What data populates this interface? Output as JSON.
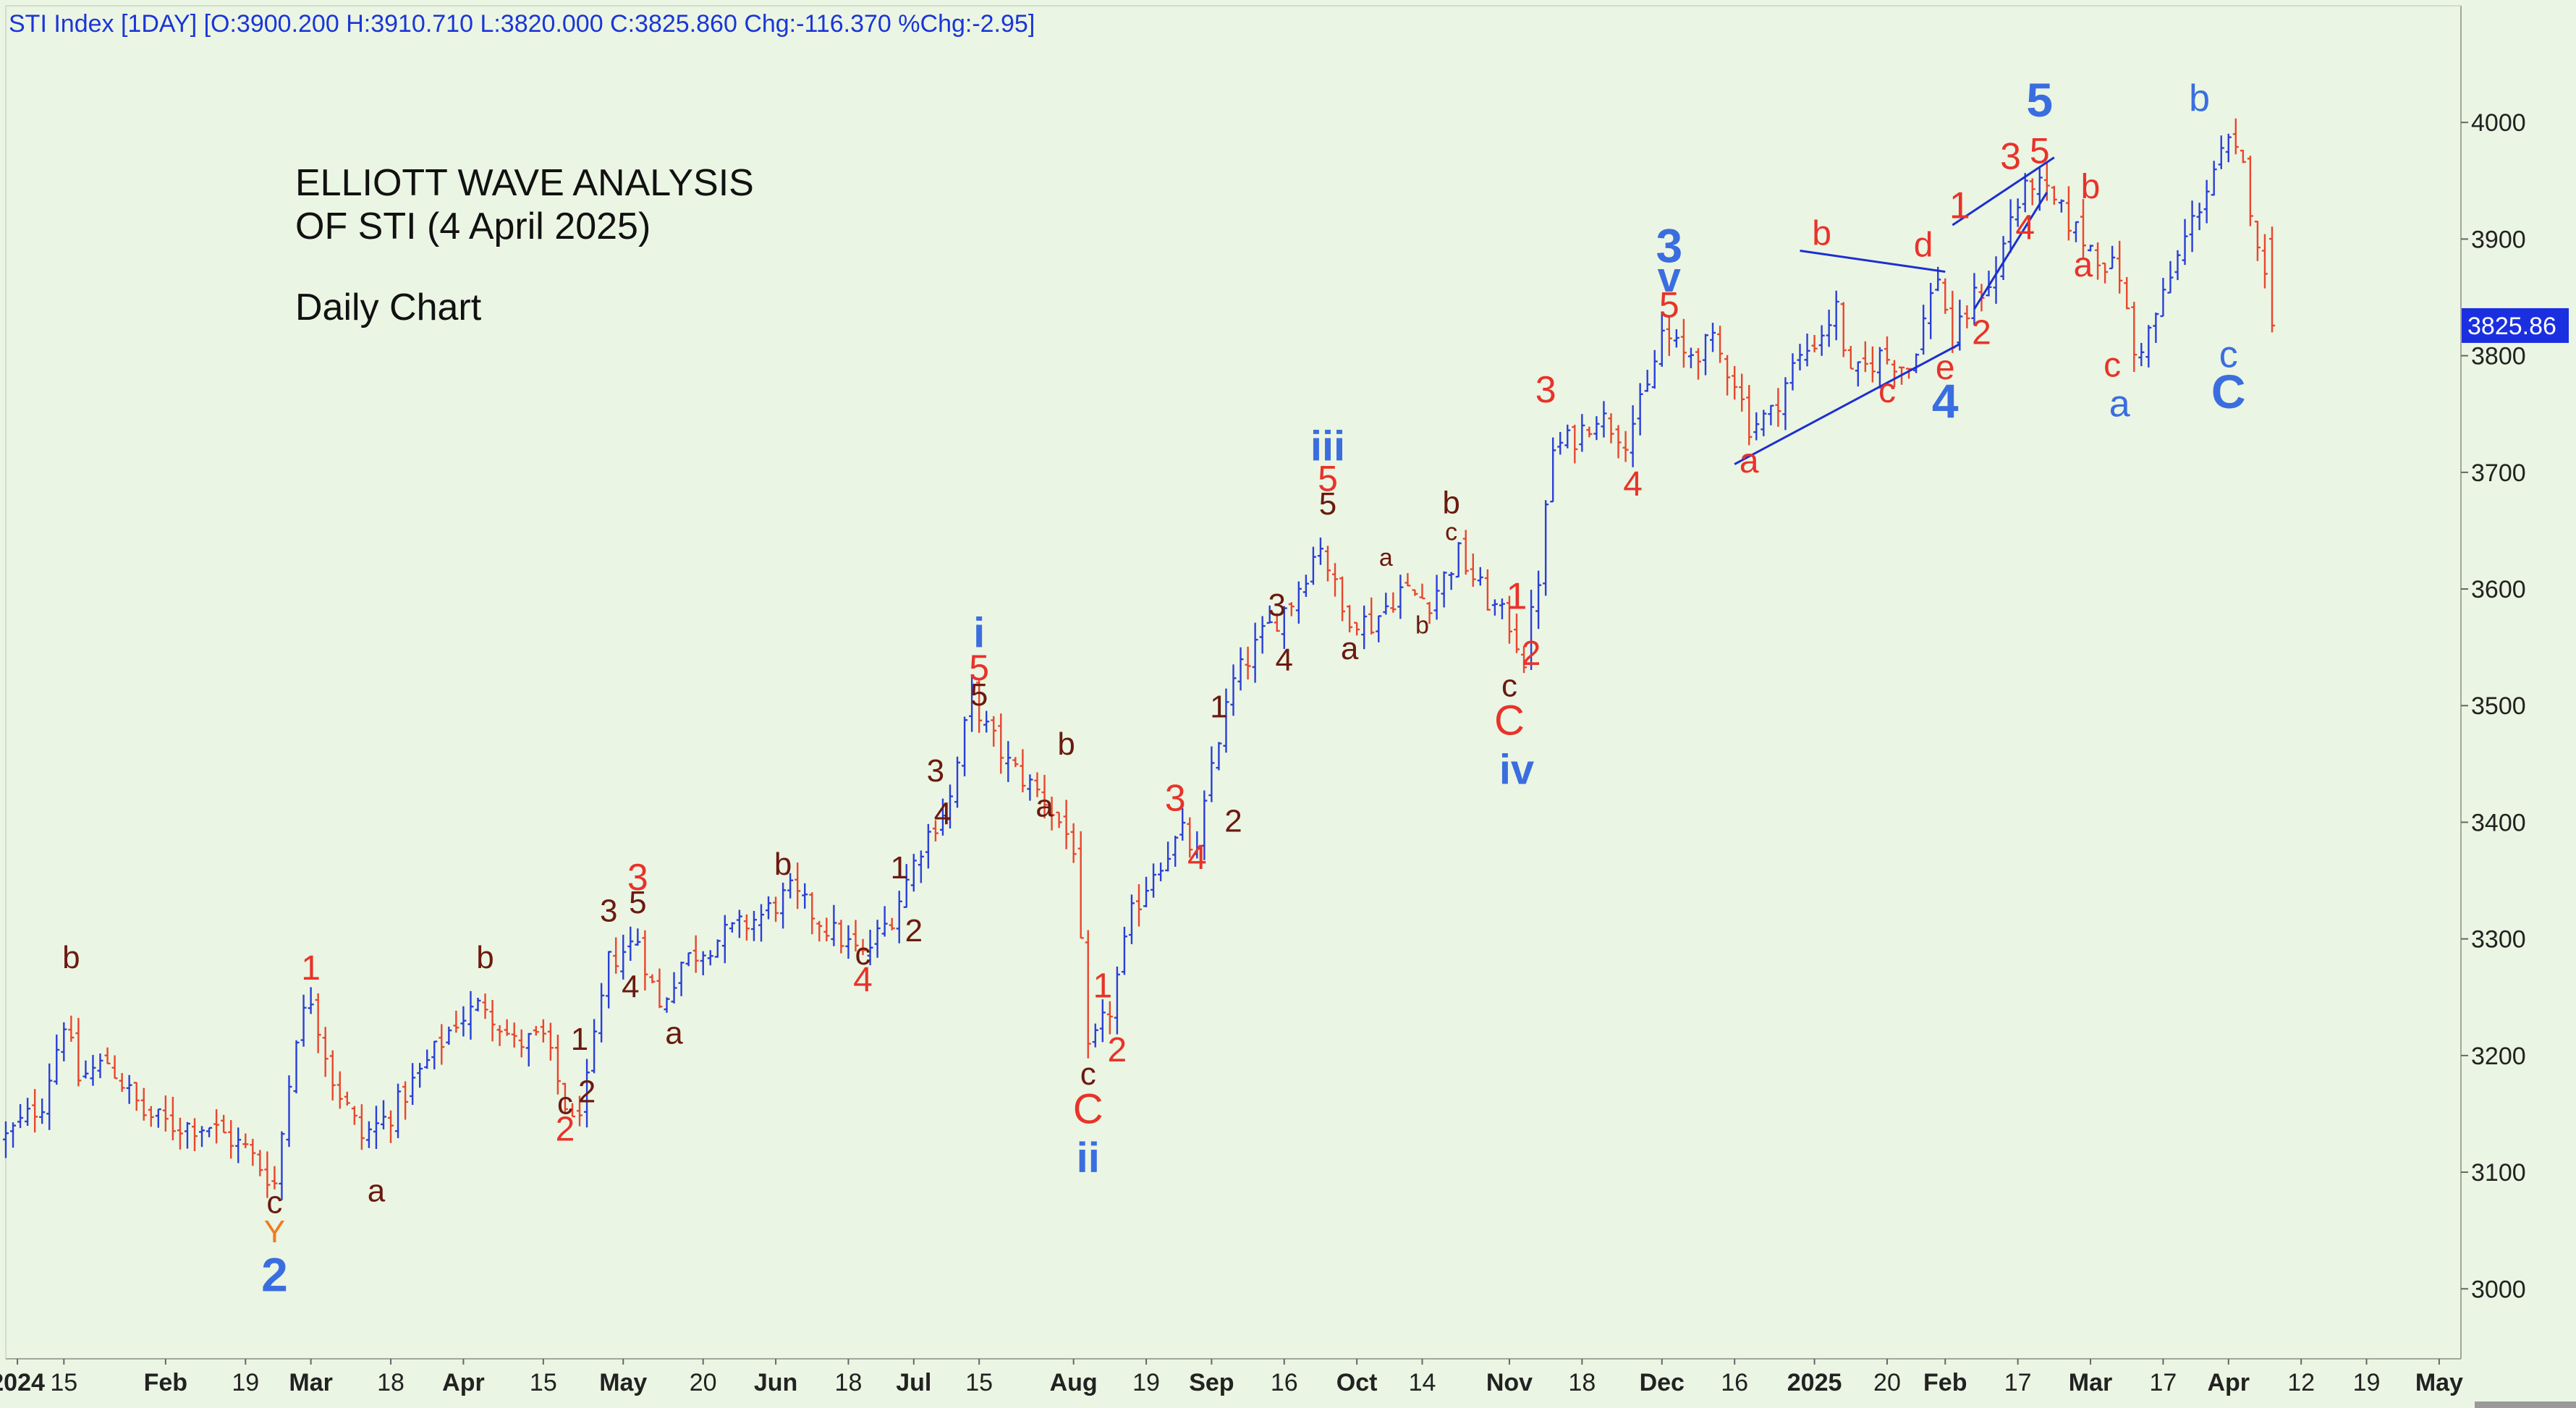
{
  "header": {
    "text": "STI Index [1DAY] [O:3900.200 H:3910.710 L:3820.000 C:3825.860 Chg:-116.370 %Chg:-2.95]"
  },
  "annotation": {
    "line1": "ELLIOTT WAVE ANALYSIS",
    "line2": "OF STI (4 April 2025)",
    "line3": "Daily Chart"
  },
  "last_price_label": "3825.86",
  "colors": {
    "background": "#ebf5e3",
    "up_bar": "#2a3fd8",
    "down_bar": "#e8462e",
    "label_blue": "#3a6ee0",
    "label_red": "#e8332a",
    "label_dark": "#6b1a10",
    "label_orange": "#f07a22",
    "price_tag": "#1a2fe0",
    "trendline": "#1c2fd0"
  },
  "chart_data": {
    "type": "ohlc",
    "ylim": [
      2940,
      4100
    ],
    "yticks": [
      3000,
      3100,
      3200,
      3300,
      3400,
      3500,
      3600,
      3700,
      3800,
      3900,
      4000
    ],
    "grid": false,
    "x_tick_labels": [
      {
        "label": "2024",
        "pos": 1.6,
        "bold": true
      },
      {
        "label": "15",
        "pos": 8,
        "bold": false
      },
      {
        "label": "Feb",
        "pos": 22,
        "bold": true
      },
      {
        "label": "19",
        "pos": 33,
        "bold": false
      },
      {
        "label": "Mar",
        "pos": 42,
        "bold": true
      },
      {
        "label": "18",
        "pos": 53,
        "bold": false
      },
      {
        "label": "Apr",
        "pos": 63,
        "bold": true
      },
      {
        "label": "15",
        "pos": 74,
        "bold": false
      },
      {
        "label": "May",
        "pos": 85,
        "bold": true
      },
      {
        "label": "20",
        "pos": 96,
        "bold": false
      },
      {
        "label": "Jun",
        "pos": 106,
        "bold": true
      },
      {
        "label": "18",
        "pos": 116,
        "bold": false
      },
      {
        "label": "Jul",
        "pos": 125,
        "bold": true
      },
      {
        "label": "15",
        "pos": 134,
        "bold": false
      },
      {
        "label": "Aug",
        "pos": 147,
        "bold": true
      },
      {
        "label": "19",
        "pos": 157,
        "bold": false
      },
      {
        "label": "Sep",
        "pos": 166,
        "bold": true
      },
      {
        "label": "16",
        "pos": 176,
        "bold": false
      },
      {
        "label": "Oct",
        "pos": 186,
        "bold": true
      },
      {
        "label": "14",
        "pos": 195,
        "bold": false
      },
      {
        "label": "Nov",
        "pos": 207,
        "bold": true
      },
      {
        "label": "18",
        "pos": 217,
        "bold": false
      },
      {
        "label": "Dec",
        "pos": 228,
        "bold": true
      },
      {
        "label": "16",
        "pos": 238,
        "bold": false
      },
      {
        "label": "2025",
        "pos": 249,
        "bold": true
      },
      {
        "label": "20",
        "pos": 259,
        "bold": false
      },
      {
        "label": "Feb",
        "pos": 267,
        "bold": true
      },
      {
        "label": "17",
        "pos": 277,
        "bold": false
      },
      {
        "label": "Mar",
        "pos": 287,
        "bold": true
      },
      {
        "label": "17",
        "pos": 297,
        "bold": false
      },
      {
        "label": "Apr",
        "pos": 306,
        "bold": true
      },
      {
        "label": "12",
        "pos": 316,
        "bold": false
      },
      {
        "label": "19",
        "pos": 325,
        "bold": false
      },
      {
        "label": "May",
        "pos": 335,
        "bold": true
      }
    ],
    "close_anchors": [
      [
        0,
        3130
      ],
      [
        5,
        3160
      ],
      [
        8,
        3230
      ],
      [
        10,
        3180
      ],
      [
        14,
        3195
      ],
      [
        19,
        3150
      ],
      [
        23,
        3140
      ],
      [
        28,
        3140
      ],
      [
        33,
        3120
      ],
      [
        37,
        3090
      ],
      [
        40,
        3220
      ],
      [
        42,
        3250
      ],
      [
        45,
        3180
      ],
      [
        49,
        3130
      ],
      [
        53,
        3150
      ],
      [
        57,
        3185
      ],
      [
        62,
        3230
      ],
      [
        66,
        3245
      ],
      [
        70,
        3210
      ],
      [
        74,
        3215
      ],
      [
        78,
        3140
      ],
      [
        80,
        3175
      ],
      [
        83,
        3280
      ],
      [
        87,
        3300
      ],
      [
        90,
        3240
      ],
      [
        93,
        3280
      ],
      [
        98,
        3300
      ],
      [
        104,
        3320
      ],
      [
        108,
        3340
      ],
      [
        113,
        3310
      ],
      [
        118,
        3285
      ],
      [
        122,
        3320
      ],
      [
        126,
        3380
      ],
      [
        130,
        3420
      ],
      [
        133,
        3510
      ],
      [
        135,
        3480
      ],
      [
        138,
        3450
      ],
      [
        143,
        3420
      ],
      [
        147,
        3380
      ],
      [
        149,
        3200
      ],
      [
        152,
        3240
      ],
      [
        155,
        3320
      ],
      [
        158,
        3360
      ],
      [
        162,
        3390
      ],
      [
        164,
        3370
      ],
      [
        166,
        3450
      ],
      [
        169,
        3520
      ],
      [
        173,
        3560
      ],
      [
        177,
        3590
      ],
      [
        181,
        3640
      ],
      [
        184,
        3580
      ],
      [
        188,
        3570
      ],
      [
        192,
        3600
      ],
      [
        196,
        3590
      ],
      [
        200,
        3630
      ],
      [
        204,
        3590
      ],
      [
        207,
        3570
      ],
      [
        209,
        3540
      ],
      [
        211,
        3610
      ],
      [
        213,
        3720
      ],
      [
        216,
        3730
      ],
      [
        219,
        3750
      ],
      [
        223,
        3730
      ],
      [
        226,
        3770
      ],
      [
        228,
        3820
      ],
      [
        231,
        3800
      ],
      [
        235,
        3810
      ],
      [
        238,
        3780
      ],
      [
        240,
        3740
      ],
      [
        243,
        3750
      ],
      [
        246,
        3790
      ],
      [
        250,
        3820
      ],
      [
        252,
        3840
      ],
      [
        254,
        3780
      ],
      [
        258,
        3800
      ],
      [
        262,
        3790
      ],
      [
        266,
        3870
      ],
      [
        268,
        3810
      ],
      [
        271,
        3850
      ],
      [
        274,
        3870
      ],
      [
        276,
        3920
      ],
      [
        279,
        3950
      ],
      [
        282,
        3930
      ],
      [
        286,
        3900
      ],
      [
        289,
        3880
      ],
      [
        291,
        3870
      ],
      [
        293,
        3800
      ],
      [
        295,
        3820
      ],
      [
        297,
        3850
      ],
      [
        300,
        3900
      ],
      [
        304,
        3960
      ],
      [
        306,
        3980
      ],
      [
        308,
        3960
      ],
      [
        310,
        3900
      ],
      [
        312,
        3825.86
      ]
    ],
    "wave_labels": [
      {
        "t": "b",
        "x": 9,
        "y": 3275,
        "c": "dark",
        "s": 44
      },
      {
        "t": "c",
        "x": 37,
        "y": 3065,
        "c": "dark",
        "s": 44
      },
      {
        "t": "Y",
        "x": 37,
        "y": 3040,
        "c": "orange",
        "s": 44
      },
      {
        "t": "2",
        "x": 37,
        "y": 2998,
        "c": "blue",
        "s": 66,
        "bold": true
      },
      {
        "t": "1",
        "x": 42,
        "y": 3265,
        "c": "red",
        "s": 48
      },
      {
        "t": "a",
        "x": 51,
        "y": 3075,
        "c": "dark",
        "s": 44
      },
      {
        "t": "b",
        "x": 66,
        "y": 3275,
        "c": "dark",
        "s": 44
      },
      {
        "t": "1",
        "x": 79,
        "y": 3205,
        "c": "dark",
        "s": 44
      },
      {
        "t": "c",
        "x": 77,
        "y": 3150,
        "c": "dark",
        "s": 44
      },
      {
        "t": "2",
        "x": 80,
        "y": 3160,
        "c": "dark",
        "s": 44
      },
      {
        "t": "2",
        "x": 77,
        "y": 3127,
        "c": "red",
        "s": 48
      },
      {
        "t": "3",
        "x": 83,
        "y": 3315,
        "c": "dark",
        "s": 44
      },
      {
        "t": "3",
        "x": 87,
        "y": 3342,
        "c": "red",
        "s": 52
      },
      {
        "t": "5",
        "x": 87,
        "y": 3322,
        "c": "dark",
        "s": 44
      },
      {
        "t": "4",
        "x": 86,
        "y": 3250,
        "c": "dark",
        "s": 44
      },
      {
        "t": "a",
        "x": 92,
        "y": 3210,
        "c": "dark",
        "s": 44
      },
      {
        "t": "b",
        "x": 107,
        "y": 3355,
        "c": "dark",
        "s": 44
      },
      {
        "t": "c",
        "x": 118,
        "y": 3278,
        "c": "dark",
        "s": 44
      },
      {
        "t": "4",
        "x": 118,
        "y": 3255,
        "c": "red",
        "s": 48
      },
      {
        "t": "1",
        "x": 123,
        "y": 3352,
        "c": "dark",
        "s": 44
      },
      {
        "t": "2",
        "x": 125,
        "y": 3298,
        "c": "dark",
        "s": 44
      },
      {
        "t": "3",
        "x": 128,
        "y": 3435,
        "c": "dark",
        "s": 44
      },
      {
        "t": "4",
        "x": 129,
        "y": 3398,
        "c": "dark",
        "s": 44
      },
      {
        "t": "i",
        "x": 134,
        "y": 3550,
        "c": "blue",
        "s": 58,
        "bold": true
      },
      {
        "t": "5",
        "x": 134,
        "y": 3522,
        "c": "red",
        "s": 50
      },
      {
        "t": "5",
        "x": 134,
        "y": 3500,
        "c": "dark",
        "s": 44
      },
      {
        "t": "b",
        "x": 146,
        "y": 3458,
        "c": "dark",
        "s": 44
      },
      {
        "t": "a",
        "x": 143,
        "y": 3405,
        "c": "dark",
        "s": 44
      },
      {
        "t": "1",
        "x": 151,
        "y": 3250,
        "c": "red",
        "s": 48
      },
      {
        "t": "2",
        "x": 153,
        "y": 3195,
        "c": "red",
        "s": 48
      },
      {
        "t": "c",
        "x": 149,
        "y": 3175,
        "c": "dark",
        "s": 44
      },
      {
        "t": "C",
        "x": 149,
        "y": 3142,
        "c": "red",
        "s": 58
      },
      {
        "t": "ii",
        "x": 149,
        "y": 3100,
        "c": "blue",
        "s": 58,
        "bold": true
      },
      {
        "t": "3",
        "x": 161,
        "y": 3410,
        "c": "red",
        "s": 52
      },
      {
        "t": "4",
        "x": 164,
        "y": 3360,
        "c": "red",
        "s": 48
      },
      {
        "t": "1",
        "x": 167,
        "y": 3490,
        "c": "dark",
        "s": 44
      },
      {
        "t": "2",
        "x": 169,
        "y": 3392,
        "c": "dark",
        "s": 44
      },
      {
        "t": "3",
        "x": 175,
        "y": 3577,
        "c": "dark",
        "s": 44
      },
      {
        "t": "4",
        "x": 176,
        "y": 3530,
        "c": "dark",
        "s": 44
      },
      {
        "t": "iii",
        "x": 182,
        "y": 3710,
        "c": "blue",
        "s": 58,
        "bold": true
      },
      {
        "t": "5",
        "x": 182,
        "y": 3684,
        "c": "red",
        "s": 50
      },
      {
        "t": "5",
        "x": 182,
        "y": 3664,
        "c": "dark",
        "s": 44
      },
      {
        "t": "a",
        "x": 185,
        "y": 3540,
        "c": "dark",
        "s": 44
      },
      {
        "t": "a",
        "x": 190,
        "y": 3620,
        "c": "dark",
        "s": 34
      },
      {
        "t": "b",
        "x": 195,
        "y": 3562,
        "c": "dark",
        "s": 34
      },
      {
        "t": "b",
        "x": 199,
        "y": 3665,
        "c": "dark",
        "s": 44
      },
      {
        "t": "c",
        "x": 199,
        "y": 3642,
        "c": "dark",
        "s": 34
      },
      {
        "t": "1",
        "x": 208,
        "y": 3583,
        "c": "red",
        "s": 52
      },
      {
        "t": "2",
        "x": 210,
        "y": 3535,
        "c": "red",
        "s": 48
      },
      {
        "t": "c",
        "x": 207,
        "y": 3508,
        "c": "dark",
        "s": 44
      },
      {
        "t": "C",
        "x": 207,
        "y": 3475,
        "c": "red",
        "s": 58
      },
      {
        "t": "iv",
        "x": 208,
        "y": 3433,
        "c": "blue",
        "s": 58,
        "bold": true
      },
      {
        "t": "3",
        "x": 212,
        "y": 3760,
        "c": "red",
        "s": 52
      },
      {
        "t": "4",
        "x": 224,
        "y": 3680,
        "c": "red",
        "s": 48
      },
      {
        "t": "3",
        "x": 229,
        "y": 3880,
        "c": "blue",
        "s": 66,
        "bold": true
      },
      {
        "t": "v",
        "x": 229,
        "y": 3855,
        "c": "blue",
        "s": 58,
        "bold": true
      },
      {
        "t": "5",
        "x": 229,
        "y": 3833,
        "c": "red",
        "s": 50
      },
      {
        "t": "a",
        "x": 240,
        "y": 3700,
        "c": "red",
        "s": 48
      },
      {
        "t": "b",
        "x": 250,
        "y": 3895,
        "c": "red",
        "s": 48
      },
      {
        "t": "c",
        "x": 259,
        "y": 3760,
        "c": "red",
        "s": 48
      },
      {
        "t": "d",
        "x": 264,
        "y": 3885,
        "c": "red",
        "s": 48
      },
      {
        "t": "e",
        "x": 267,
        "y": 3780,
        "c": "red",
        "s": 48
      },
      {
        "t": "4",
        "x": 267,
        "y": 3747,
        "c": "blue",
        "s": 66,
        "bold": true
      },
      {
        "t": "1",
        "x": 269,
        "y": 3918,
        "c": "red",
        "s": 52
      },
      {
        "t": "2",
        "x": 272,
        "y": 3810,
        "c": "red",
        "s": 48
      },
      {
        "t": "3",
        "x": 276,
        "y": 3960,
        "c": "red",
        "s": 52
      },
      {
        "t": "5",
        "x": 280,
        "y": 4005,
        "c": "blue",
        "s": 66,
        "bold": true
      },
      {
        "t": "5",
        "x": 280,
        "y": 3965,
        "c": "red",
        "s": 50
      },
      {
        "t": "4",
        "x": 278,
        "y": 3900,
        "c": "red",
        "s": 48
      },
      {
        "t": "b",
        "x": 287,
        "y": 3935,
        "c": "red",
        "s": 48
      },
      {
        "t": "a",
        "x": 286,
        "y": 3868,
        "c": "red",
        "s": 48
      },
      {
        "t": "c",
        "x": 290,
        "y": 3782,
        "c": "red",
        "s": 48
      },
      {
        "t": "a",
        "x": 291,
        "y": 3748,
        "c": "blue",
        "s": 52
      },
      {
        "t": "b",
        "x": 302,
        "y": 4010,
        "c": "blue",
        "s": 52
      },
      {
        "t": "c",
        "x": 306,
        "y": 3790,
        "c": "blue",
        "s": 52
      },
      {
        "t": "C",
        "x": 306,
        "y": 3755,
        "c": "blue",
        "s": 66,
        "bold": true
      }
    ],
    "trend_lines": [
      {
        "x1": 238,
        "y1": 3707,
        "x2": 269,
        "y2": 3810
      },
      {
        "x1": 247,
        "y1": 3890,
        "x2": 267,
        "y2": 3872
      },
      {
        "x1": 271,
        "y1": 3840,
        "x2": 281,
        "y2": 3940
      },
      {
        "x1": 268,
        "y1": 3912,
        "x2": 282,
        "y2": 3970
      }
    ]
  }
}
